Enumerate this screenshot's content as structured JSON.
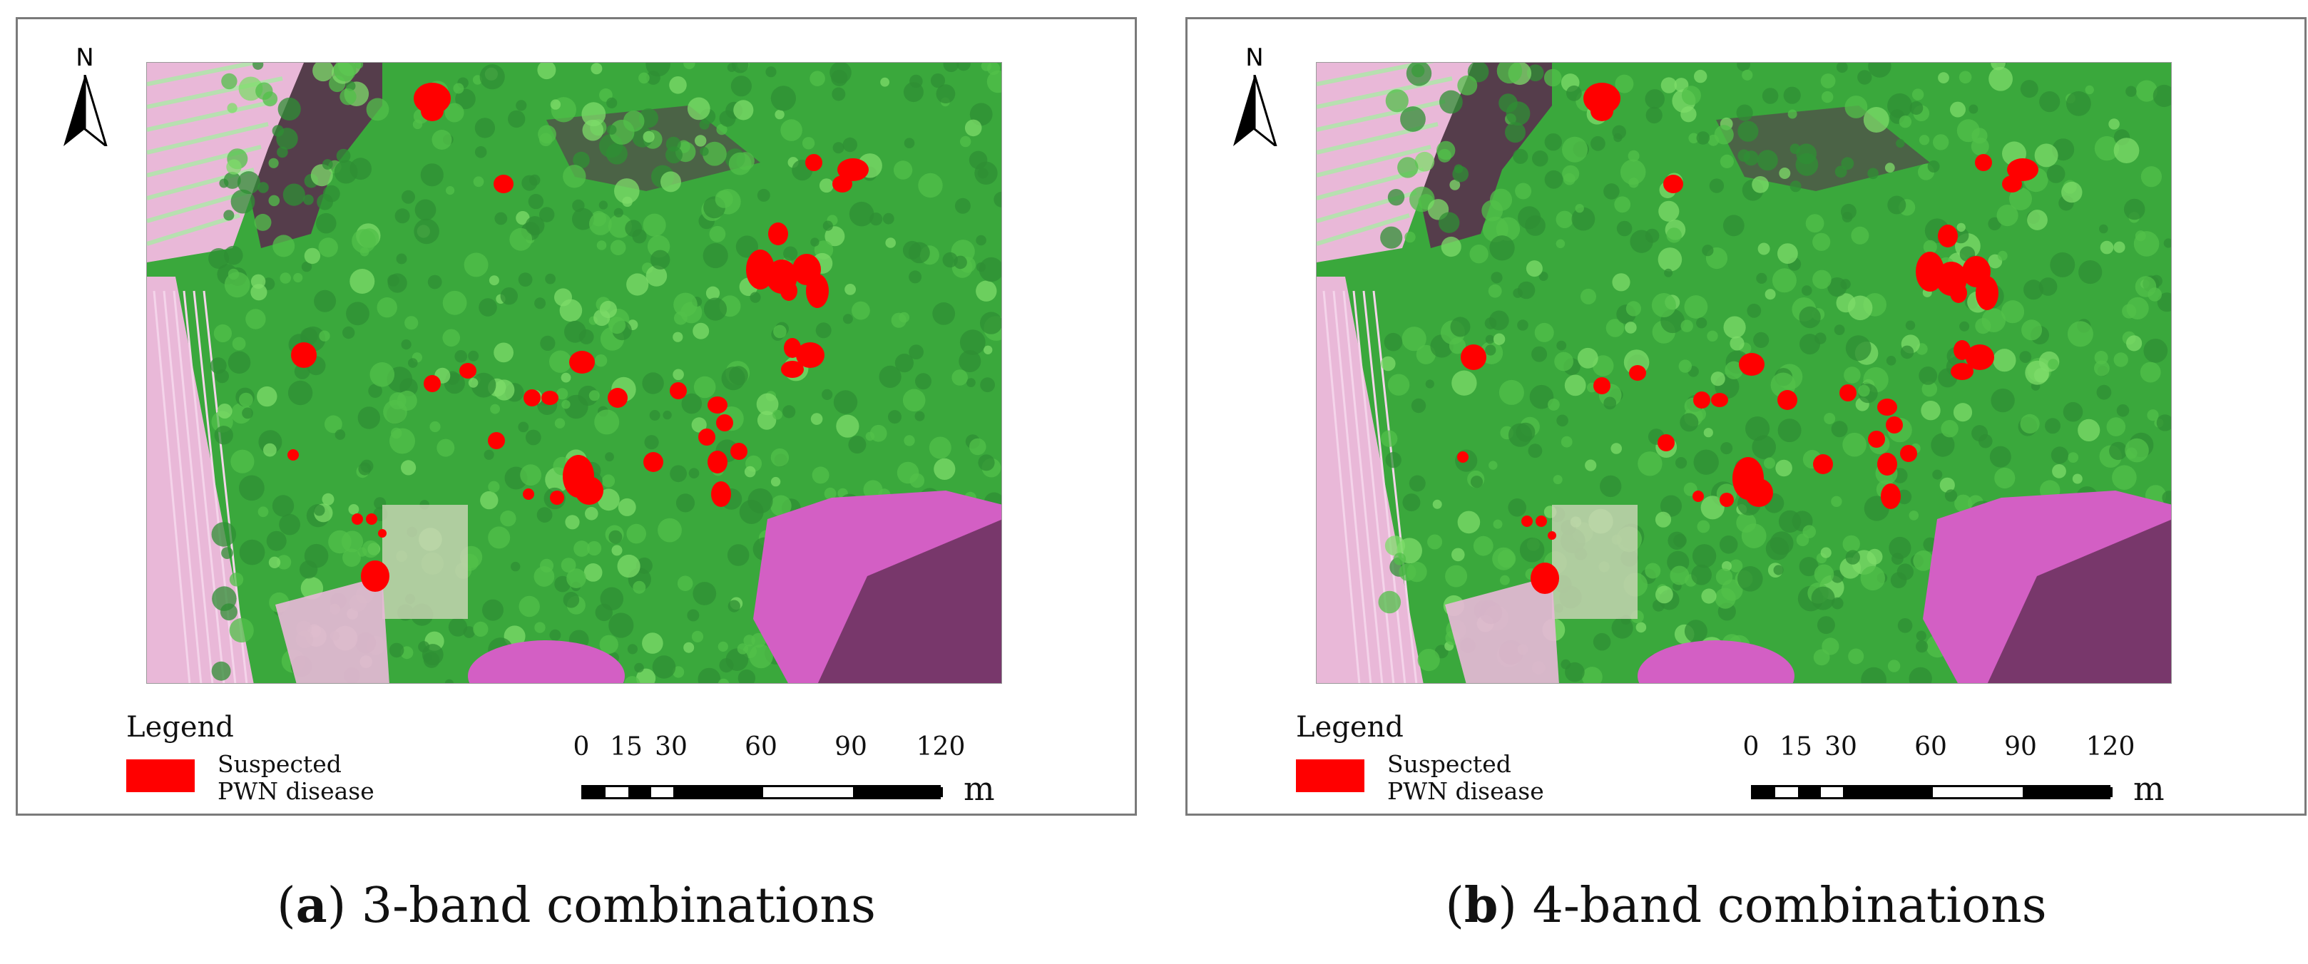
{
  "colors": {
    "disease": "#ff0000",
    "forest": "#3aa83c",
    "forest_dark": "#5a2a4e",
    "field": "#e9b8d8",
    "water_pink": "#d35fc4",
    "frame": "#7a7a7a"
  },
  "icons": [
    "north-arrow-icon"
  ],
  "panels": [
    {
      "north_label": "N",
      "legend_title": "Legend",
      "legend_label": "Suspected\nPWN disease",
      "scale_ticks": [
        "0",
        "15",
        "30",
        "60",
        "90",
        "120"
      ],
      "scale_unit": "m",
      "caption_letter": "a",
      "caption_text": " 3-band combinations"
    },
    {
      "north_label": "N",
      "legend_title": "Legend",
      "legend_label": "Suspected\nPWN disease",
      "scale_ticks": [
        "0",
        "15",
        "30",
        "60",
        "90",
        "120"
      ],
      "scale_unit": "m",
      "caption_letter": "b",
      "caption_text": " 4-band combinations"
    }
  ]
}
